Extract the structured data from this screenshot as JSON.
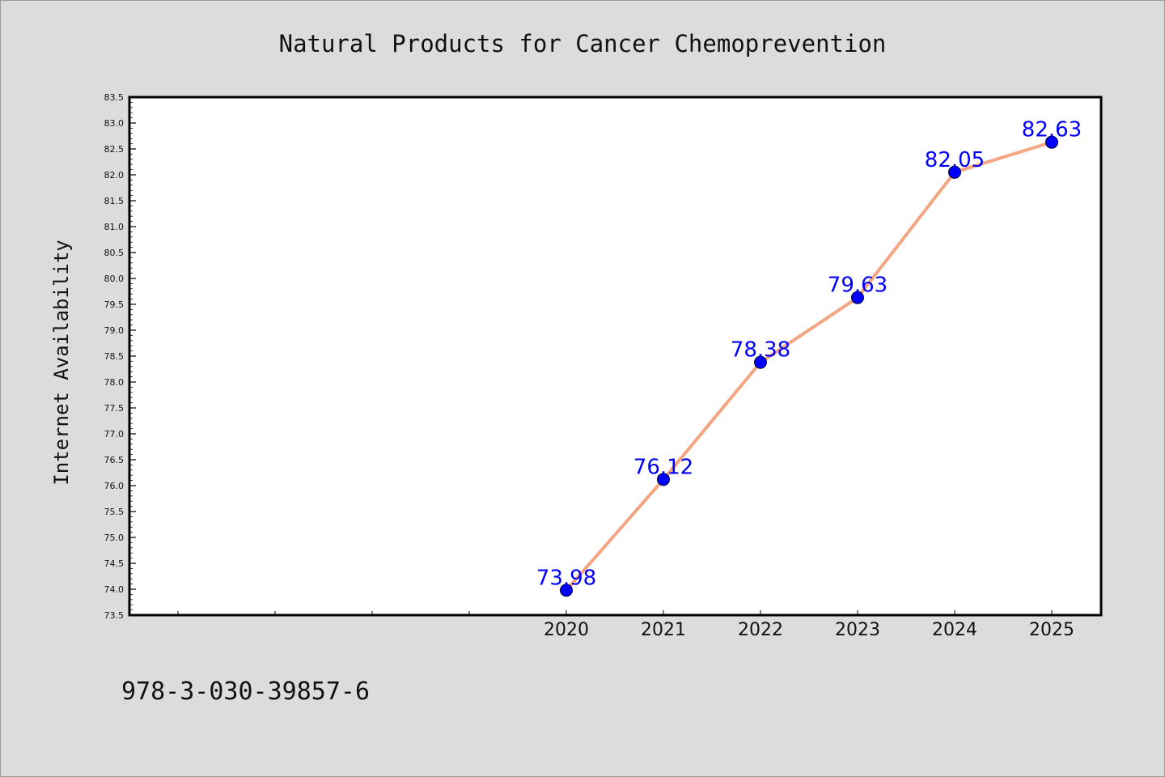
{
  "chart_data": {
    "type": "line",
    "title": "Natural Products for Cancer Chemoprevention",
    "xlabel": "",
    "ylabel": "Internet Availability",
    "categories": [
      "2020",
      "2021",
      "2022",
      "2023",
      "2024",
      "2025"
    ],
    "series": [
      {
        "values": [
          73.98,
          76.12,
          78.38,
          79.63,
          82.05,
          82.63
        ],
        "labels": [
          "73.98",
          "76.12",
          "78.38",
          "79.63",
          "82.05",
          "82.63"
        ],
        "line_color": "#f4a582",
        "marker_color": "#0000ff"
      }
    ],
    "ylim": [
      73.5,
      83.5
    ],
    "yticks": [
      "73.5",
      "74.0",
      "74.5",
      "75.0",
      "75.5",
      "76.0",
      "76.5",
      "77.0",
      "77.5",
      "78.0",
      "78.5",
      "79.0",
      "79.5",
      "80.0",
      "80.5",
      "81.0",
      "81.5",
      "82.0",
      "82.5",
      "83.0",
      "83.5"
    ],
    "grid": false,
    "legend": "none"
  },
  "footnote": "978-3-030-39857-6"
}
